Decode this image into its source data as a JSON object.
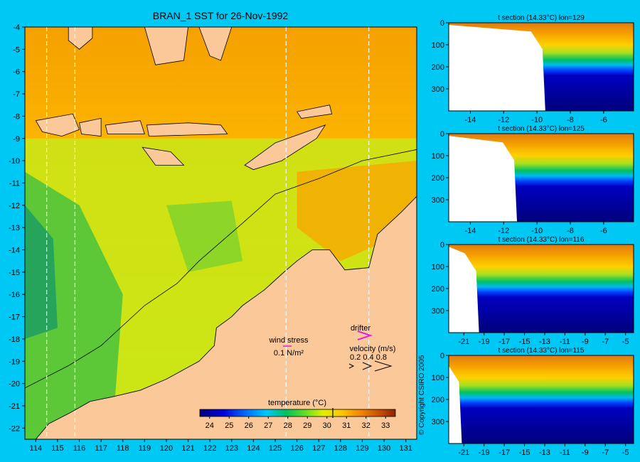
{
  "title": "BRAN_1 SST for 26-Nov-1992",
  "copyright": "© Copyright CSIRO 2005",
  "colors": {
    "background": "#00c8f5",
    "land": "#fbc89a"
  },
  "map": {
    "xticks": [
      114,
      115,
      116,
      117,
      118,
      119,
      120,
      121,
      122,
      123,
      124,
      125,
      126,
      127,
      128,
      129,
      130,
      131
    ],
    "yticks": [
      -4,
      -5,
      -6,
      -7,
      -8,
      -9,
      -10,
      -11,
      -12,
      -13,
      -14,
      -15,
      -16,
      -17,
      -18,
      -19,
      -20,
      -21,
      -22
    ],
    "xlim": [
      113.5,
      131.5
    ],
    "ylim": [
      -22.5,
      -4
    ],
    "section_lons": [
      114.5,
      115.8,
      125.5,
      129.3
    ]
  },
  "legend": {
    "wind_label": "wind stress",
    "wind_scale": "0.1 N/m²",
    "drifter_label": "drifter",
    "velocity_label": "velocity (m/s)",
    "velocity_scale": "0.2 0.4 0.8"
  },
  "colorbar": {
    "label": "temperature (°C)",
    "ticks": [
      24,
      25,
      26,
      27,
      28,
      29,
      30,
      31,
      32,
      33
    ],
    "range": [
      23.5,
      33.5
    ],
    "marker": 30.3
  },
  "chart_data": [
    {
      "type": "heatmap",
      "title": "BRAN_1 SST for 26-Nov-1992",
      "xlabel": "",
      "ylabel": "",
      "xlim": [
        113.5,
        131.5
      ],
      "ylim": [
        -22.5,
        -4
      ],
      "value_range_C": [
        24,
        33
      ],
      "series": [
        {
          "name": "temperature (°C)",
          "values": "sea surface temperature field"
        }
      ]
    },
    {
      "type": "heatmap",
      "title": "t section (14.33°C) lon=129",
      "xticks": [
        -14,
        -12,
        -10,
        -8,
        -6
      ],
      "yticks": [
        0,
        100,
        200,
        300
      ],
      "xlim": [
        -15.3,
        -4.2
      ],
      "ylim": [
        0,
        400
      ],
      "thermocline_depth_m": 150,
      "land_edge_lat": -9.5
    },
    {
      "type": "heatmap",
      "title": "t section (14.33°C) lon=125",
      "xticks": [
        -14,
        -12,
        -10,
        -8,
        -6
      ],
      "yticks": [
        0,
        100,
        200,
        300
      ],
      "xlim": [
        -15.3,
        -4.2
      ],
      "ylim": [
        0,
        400
      ],
      "thermocline_depth_m": 190,
      "land_edge_lat": -11.2
    },
    {
      "type": "heatmap",
      "title": "t section (14.33°C) lon=116",
      "xticks": [
        -21,
        -19,
        -17,
        -15,
        -13,
        -11,
        -9,
        -7,
        -5
      ],
      "yticks": [
        0,
        100,
        200,
        300
      ],
      "xlim": [
        -22.5,
        -4.2
      ],
      "ylim": [
        0,
        400
      ],
      "thermocline_depth_m": 200,
      "land_edge_lat": -19.5
    },
    {
      "type": "heatmap",
      "title": "t section (14.33°C) lon=115",
      "xticks": [
        -21,
        -19,
        -17,
        -15,
        -13,
        -11,
        -9,
        -7,
        -5
      ],
      "yticks": [
        0,
        100,
        200,
        300
      ],
      "xlim": [
        -22.5,
        -4.2
      ],
      "ylim": [
        0,
        400
      ],
      "thermocline_depth_m": 220,
      "land_edge_lat": -21.2
    }
  ]
}
